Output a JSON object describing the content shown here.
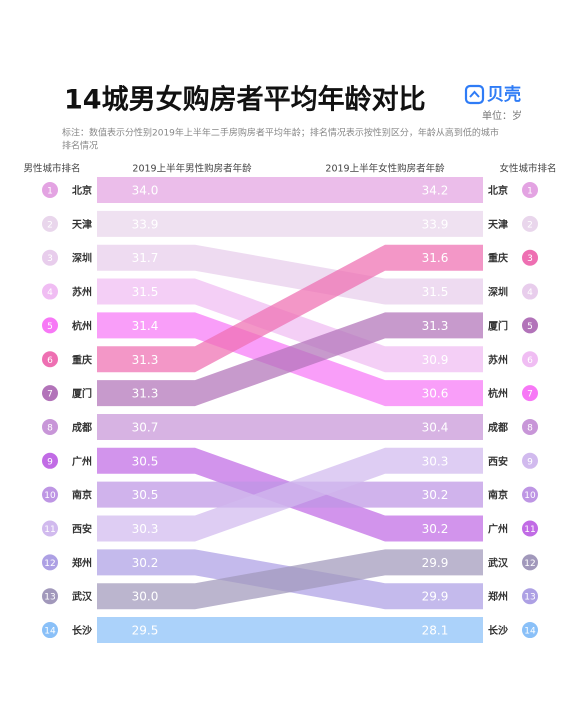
{
  "chart_data": {
    "type": "slope",
    "title": "14城男女购房者平均年龄对比",
    "logo": "贝壳",
    "unit": "单位：岁",
    "note": [
      "标注：数值表示分性别2019年上半年二手房购房者平均年龄；排名情况表示按性别区分，年龄从高到低的城市",
      "排名情况"
    ],
    "headers": [
      "男性城市排名",
      "2019上半年男性购房者年龄",
      "2019上半年女性购房者年龄",
      "女性城市排名"
    ],
    "series": [
      {
        "name": "北京",
        "color": "#e3a3e2",
        "values": [
          34.0,
          34.2
        ],
        "value_labels": [
          "34.0",
          "34.2"
        ],
        "ranks": [
          1,
          1
        ]
      },
      {
        "name": "天津",
        "color": "#e9d6ec",
        "values": [
          33.9,
          33.9
        ],
        "value_labels": [
          "33.9",
          "33.9"
        ],
        "ranks": [
          2,
          2
        ]
      },
      {
        "name": "深圳",
        "color": "#e8cdec",
        "values": [
          31.7,
          31.5
        ],
        "value_labels": [
          "31.7",
          "31.5"
        ],
        "ranks": [
          3,
          4
        ]
      },
      {
        "name": "苏州",
        "color": "#f0bdf3",
        "values": [
          31.5,
          30.9
        ],
        "value_labels": [
          "31.5",
          "30.9"
        ],
        "ranks": [
          4,
          6
        ]
      },
      {
        "name": "杭州",
        "color": "#f778f6",
        "values": [
          31.4,
          30.6
        ],
        "value_labels": [
          "31.4",
          "30.6"
        ],
        "ranks": [
          5,
          7
        ]
      },
      {
        "name": "重庆",
        "color": "#ee6fb2",
        "values": [
          31.3,
          31.6
        ],
        "value_labels": [
          "31.3",
          "31.6"
        ],
        "ranks": [
          6,
          3
        ]
      },
      {
        "name": "厦门",
        "color": "#b273b9",
        "values": [
          31.3,
          31.3
        ],
        "value_labels": [
          "31.3",
          "31.3"
        ],
        "ranks": [
          7,
          5
        ]
      },
      {
        "name": "成都",
        "color": "#c896d8",
        "values": [
          30.7,
          30.4
        ],
        "value_labels": [
          "30.7",
          "30.4"
        ],
        "ranks": [
          8,
          8
        ]
      },
      {
        "name": "广州",
        "color": "#c16be5",
        "values": [
          30.5,
          30.2
        ],
        "value_labels": [
          "30.5",
          "30.2"
        ],
        "ranks": [
          9,
          11
        ]
      },
      {
        "name": "南京",
        "color": "#be96e4",
        "values": [
          30.5,
          30.2
        ],
        "value_labels": [
          "30.5",
          "30.2"
        ],
        "ranks": [
          10,
          10
        ]
      },
      {
        "name": "西安",
        "color": "#d1baee",
        "values": [
          30.3,
          30.3
        ],
        "value_labels": [
          "30.3",
          "30.3"
        ],
        "ranks": [
          11,
          9
        ]
      },
      {
        "name": "郑州",
        "color": "#ada0e4",
        "values": [
          30.2,
          29.9
        ],
        "value_labels": [
          "30.2",
          "29.9"
        ],
        "ranks": [
          12,
          13
        ]
      },
      {
        "name": "武汉",
        "color": "#a198bb",
        "values": [
          30.0,
          29.9
        ],
        "value_labels": [
          "30.0",
          "29.9"
        ],
        "ranks": [
          13,
          12
        ]
      },
      {
        "name": "长沙",
        "color": "#8ac0f8",
        "values": [
          29.5,
          28.1
        ],
        "value_labels": [
          "29.5",
          "28.1"
        ],
        "ranks": [
          14,
          14
        ]
      }
    ]
  }
}
